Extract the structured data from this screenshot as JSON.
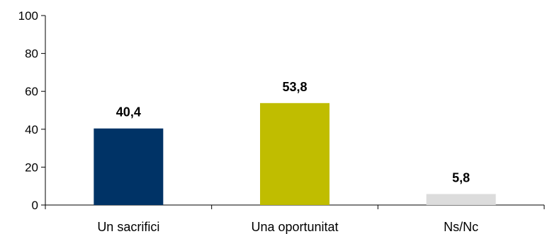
{
  "chart_data": {
    "type": "bar",
    "categories": [
      "Un sacrifici",
      "Una oportunitat",
      "Ns/Nc"
    ],
    "values": [
      40.4,
      53.8,
      5.8
    ],
    "data_labels": [
      "40,4",
      "53,8",
      "5,8"
    ],
    "colors": [
      "#003366",
      "#c0bd00",
      "#dcdcdc"
    ],
    "ylim": [
      0,
      100
    ],
    "yticks": [
      0,
      20,
      40,
      60,
      80,
      100
    ],
    "ytick_labels": [
      "0",
      "20",
      "40",
      "60",
      "80",
      "100"
    ],
    "grid": false,
    "legend": "none"
  }
}
